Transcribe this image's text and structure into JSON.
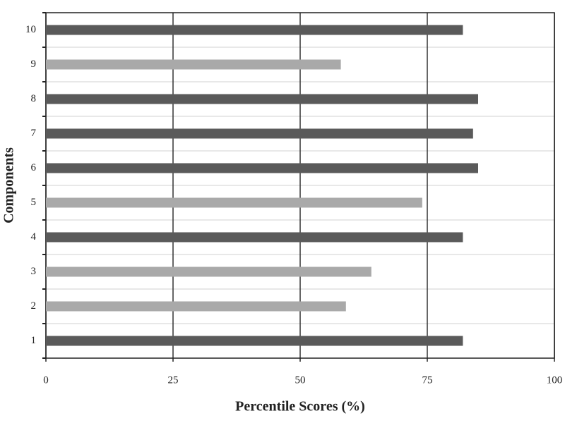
{
  "chart_data": {
    "type": "bar",
    "orientation": "horizontal",
    "x_label": "Percentile Scores (%)",
    "y_label": "Components",
    "categories": [
      "1",
      "2",
      "3",
      "4",
      "5",
      "6",
      "7",
      "8",
      "9",
      "10"
    ],
    "values": [
      82,
      59,
      64,
      82,
      74,
      85,
      84,
      85,
      58,
      82
    ],
    "colors": [
      "#5a5a5a",
      "#a9a9a9",
      "#a9a9a9",
      "#5a5a5a",
      "#a9a9a9",
      "#5a5a5a",
      "#5a5a5a",
      "#5a5a5a",
      "#a9a9a9",
      "#5a5a5a"
    ],
    "xlim": [
      0,
      100
    ],
    "xticks": [
      0,
      25,
      50,
      75,
      100
    ],
    "grid": true
  }
}
